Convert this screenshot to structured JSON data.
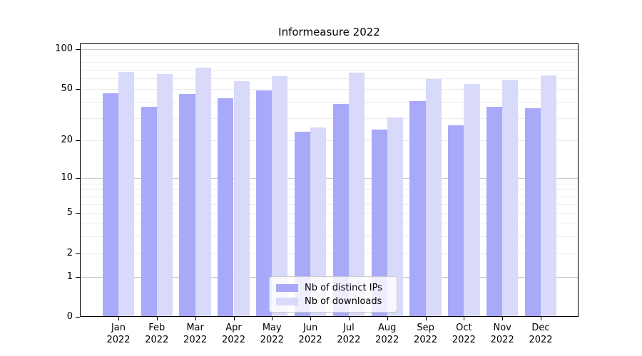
{
  "chart_data": {
    "type": "bar",
    "title": "Informeasure 2022",
    "xlabel": "",
    "ylabel": "",
    "yscale": "symlog-ln(1+v)",
    "ylim": [
      0,
      111
    ],
    "grid": true,
    "legend_position": "lower center",
    "y_ticks": [
      {
        "value": 100,
        "label": "100"
      },
      {
        "value": 50,
        "label": "50"
      },
      {
        "value": 20,
        "label": "20"
      },
      {
        "value": 10,
        "label": "10"
      },
      {
        "value": 5,
        "label": "5"
      },
      {
        "value": 2,
        "label": "2"
      },
      {
        "value": 1,
        "label": "1"
      },
      {
        "value": 0,
        "label": "0"
      }
    ],
    "categories": [
      {
        "month": "Jan",
        "year": "2022"
      },
      {
        "month": "Feb",
        "year": "2022"
      },
      {
        "month": "Mar",
        "year": "2022"
      },
      {
        "month": "Apr",
        "year": "2022"
      },
      {
        "month": "May",
        "year": "2022"
      },
      {
        "month": "Jun",
        "year": "2022"
      },
      {
        "month": "Jul",
        "year": "2022"
      },
      {
        "month": "Aug",
        "year": "2022"
      },
      {
        "month": "Sep",
        "year": "2022"
      },
      {
        "month": "Oct",
        "year": "2022"
      },
      {
        "month": "Nov",
        "year": "2022"
      },
      {
        "month": "Dec",
        "year": "2022"
      }
    ],
    "series": [
      {
        "name": "Nb of distinct IPs",
        "color": "#a9a9fa",
        "values": [
          46,
          36,
          45,
          42,
          48,
          23,
          38,
          24,
          40,
          26,
          36,
          35
        ]
      },
      {
        "name": "Nb of downloads",
        "color": "#d9d9fa",
        "values": [
          67,
          64,
          72,
          57,
          62,
          25,
          66,
          30,
          59,
          54,
          58,
          63
        ]
      }
    ]
  }
}
